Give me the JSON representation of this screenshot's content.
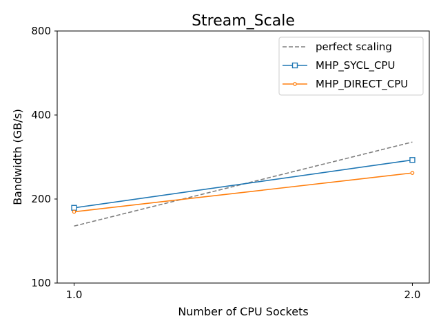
{
  "chart_data": {
    "type": "line",
    "title": "Stream_Scale",
    "xlabel": "Number of CPU Sockets",
    "ylabel": "Bandwidth (GB/s)",
    "xscale": "linear",
    "yscale": "log2",
    "xlim": [
      0.95,
      2.05
    ],
    "ylim": [
      100,
      800
    ],
    "x_ticks": [
      {
        "value": 1.0,
        "label": "1.0"
      },
      {
        "value": 2.0,
        "label": "2.0"
      }
    ],
    "y_ticks": [
      {
        "value": 100,
        "label": "100"
      },
      {
        "value": 200,
        "label": "200"
      },
      {
        "value": 400,
        "label": "400"
      },
      {
        "value": 800,
        "label": "800"
      }
    ],
    "legend_position": "top-right",
    "series": [
      {
        "name": "perfect scaling",
        "x": [
          1.0,
          2.0
        ],
        "y": [
          160,
          320
        ],
        "color": "#808080",
        "linestyle": "dashed",
        "marker": "none"
      },
      {
        "name": "MHP_SYCL_CPU",
        "x": [
          1.0,
          2.0
        ],
        "y": [
          186,
          276
        ],
        "color": "#1f77b4",
        "linestyle": "solid",
        "marker": "square"
      },
      {
        "name": "MHP_DIRECT_CPU",
        "x": [
          1.0,
          2.0
        ],
        "y": [
          180,
          248
        ],
        "color": "#ff7f0e",
        "linestyle": "solid",
        "marker": "circle"
      }
    ]
  }
}
